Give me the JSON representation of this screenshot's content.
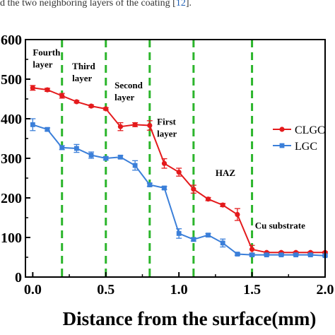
{
  "caption": {
    "text": "d the two neighboring layers of the coating [",
    "ref": "12",
    "tail": "]."
  },
  "chart_data": {
    "type": "line",
    "xlabel": "Distance from the surface(mm)",
    "ylabel": "",
    "xlim": [
      -0.05,
      2.0
    ],
    "ylim": [
      0,
      600
    ],
    "xticks": [
      "0.0",
      "0.5",
      "1.0",
      "1.5",
      "2.0"
    ],
    "xtick_values": [
      0.0,
      0.5,
      1.0,
      1.5,
      2.0
    ],
    "yticks": [
      "0",
      "100",
      "200",
      "300",
      "400",
      "500",
      "600"
    ],
    "ytick_values": [
      0,
      100,
      200,
      300,
      400,
      500,
      600
    ],
    "boundaries": [
      0.2,
      0.5,
      0.8,
      1.1,
      1.5
    ],
    "boundary_color": "#2bb52b",
    "zone_labels": [
      {
        "lines": [
          "Fourth",
          "layer"
        ],
        "x": 0.0,
        "y": 560
      },
      {
        "lines": [
          "Third",
          "layer"
        ],
        "x": 0.27,
        "y": 525
      },
      {
        "lines": [
          "Second",
          "layer"
        ],
        "x": 0.56,
        "y": 477
      },
      {
        "lines": [
          "First",
          "layer"
        ],
        "x": 0.85,
        "y": 385
      },
      {
        "lines": [
          "HAZ"
        ],
        "x": 1.25,
        "y": 255
      },
      {
        "lines": [
          "Cu substrate"
        ],
        "x": 1.52,
        "y": 122
      }
    ],
    "series": [
      {
        "name": "CLGC",
        "color": "#e41a1c",
        "marker": "circle",
        "x": [
          0.0,
          0.1,
          0.2,
          0.3,
          0.4,
          0.5,
          0.6,
          0.7,
          0.8,
          0.9,
          1.0,
          1.1,
          1.2,
          1.3,
          1.4,
          1.5,
          1.6,
          1.7,
          1.8,
          1.9,
          2.0
        ],
        "values": [
          478,
          473,
          458,
          443,
          432,
          425,
          380,
          385,
          383,
          287,
          265,
          222,
          197,
          182,
          158,
          70,
          62,
          62,
          62,
          62,
          62
        ],
        "errors": [
          6,
          4,
          6,
          3,
          3,
          3,
          10,
          5,
          12,
          12,
          10,
          10,
          4,
          4,
          15,
          10,
          2,
          2,
          2,
          2,
          2
        ]
      },
      {
        "name": "LGC",
        "color": "#3b7fd9",
        "marker": "square",
        "x": [
          0.0,
          0.1,
          0.2,
          0.3,
          0.4,
          0.5,
          0.6,
          0.7,
          0.8,
          0.9,
          1.0,
          1.1,
          1.2,
          1.3,
          1.4,
          1.5,
          1.6,
          1.7,
          1.8,
          1.9,
          2.0
        ],
        "values": [
          385,
          373,
          327,
          325,
          308,
          300,
          303,
          282,
          233,
          225,
          110,
          95,
          106,
          86,
          58,
          56,
          56,
          56,
          56,
          56,
          54
        ],
        "errors": [
          15,
          4,
          5,
          10,
          8,
          4,
          4,
          12,
          4,
          4,
          12,
          4,
          4,
          10,
          3,
          3,
          2,
          2,
          2,
          2,
          2
        ]
      }
    ],
    "legend_position": "right"
  }
}
